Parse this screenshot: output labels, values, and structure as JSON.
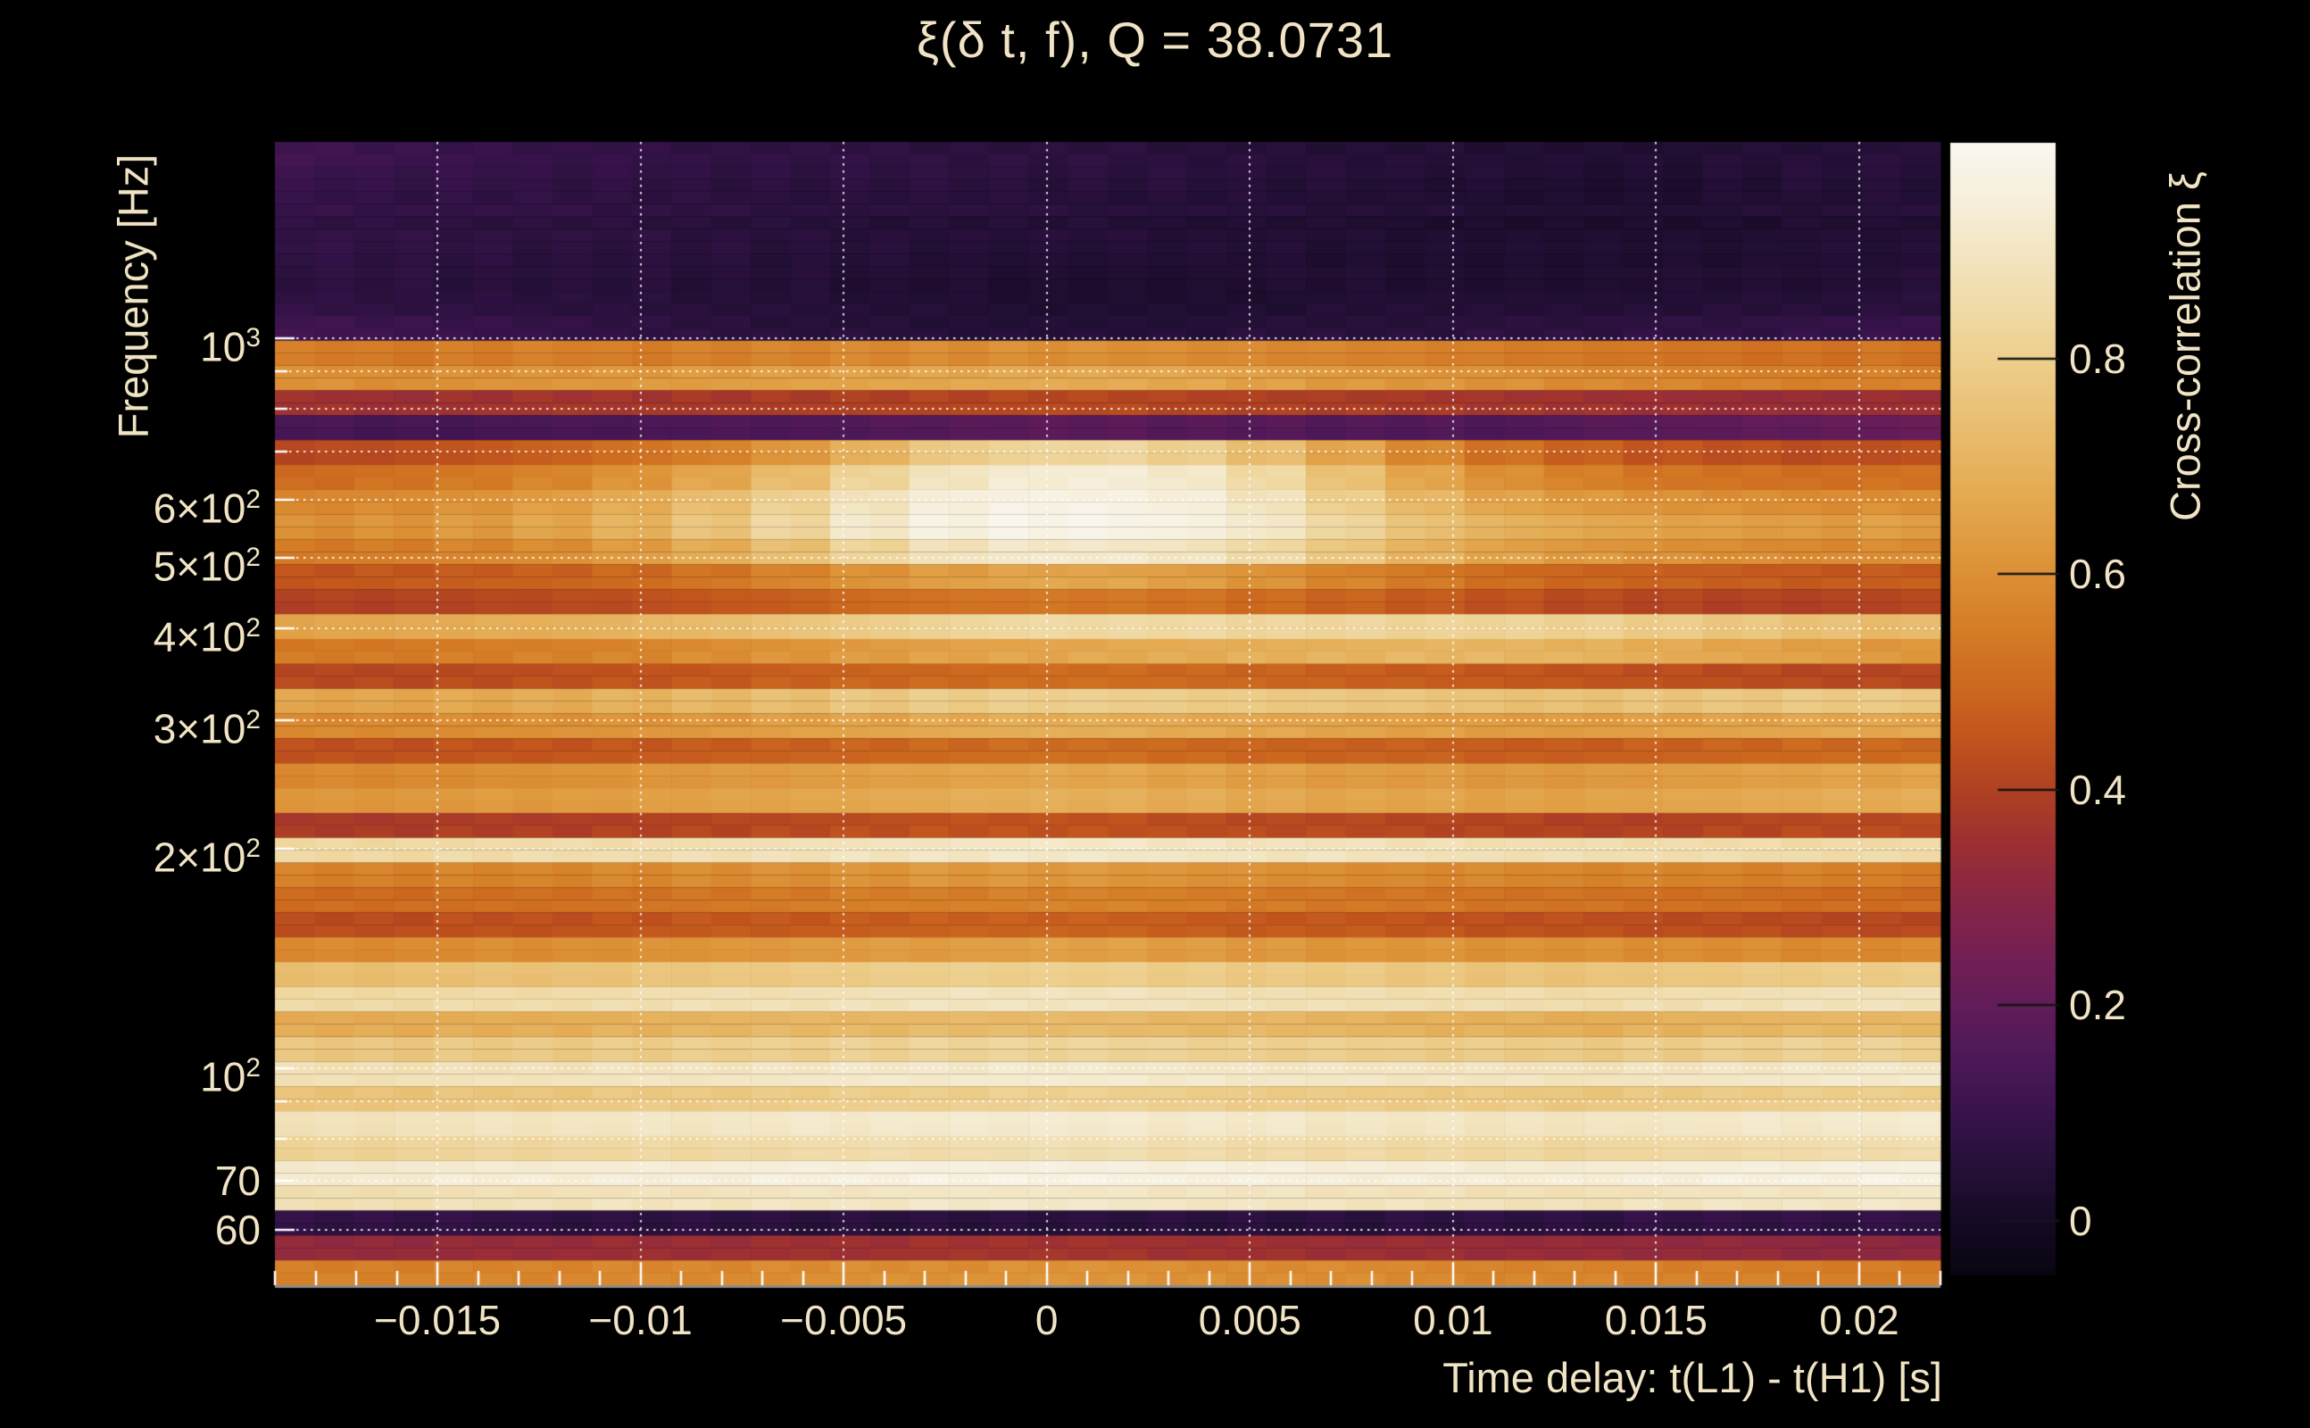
{
  "title": "ξ(δ t, f), Q = 38.0731",
  "colors": {
    "background": "#000000",
    "text": "#f0e4c4",
    "gridline": "rgba(255,255,255,0.88)",
    "tick": "#ffffff",
    "axis_line": "#8c8c8c",
    "colorbar_tick": "#141414"
  },
  "chart_data": {
    "type": "heatmap",
    "title": "ξ(δ t, f), Q = 38.0731",
    "xlabel": "Time delay: t(L1) - t(H1) [s]",
    "ylabel": "Frequency [Hz]",
    "colorbar_label": "Cross-correlation ξ",
    "x_range": [
      -0.019,
      0.022
    ],
    "y_range_hz": [
      50.4,
      1858
    ],
    "y_scale": "log",
    "grid_on": true,
    "colorbar_range": [
      -0.05,
      1.0
    ],
    "x_major_ticks": [
      {
        "v": -0.015,
        "label": "−0.015"
      },
      {
        "v": -0.01,
        "label": "−0.01"
      },
      {
        "v": -0.005,
        "label": "−0.005"
      },
      {
        "v": 0,
        "label": "0"
      },
      {
        "v": 0.005,
        "label": "0.005"
      },
      {
        "v": 0.01,
        "label": "0.01"
      },
      {
        "v": 0.015,
        "label": "0.015"
      },
      {
        "v": 0.02,
        "label": "0.02"
      }
    ],
    "x_minor_step": 0.001,
    "y_ticks": [
      {
        "f": 1000,
        "pre": "10",
        "sup": "3"
      },
      {
        "f": 600,
        "pre": "6×10",
        "sup": "2"
      },
      {
        "f": 500,
        "pre": "5×10",
        "sup": "2"
      },
      {
        "f": 400,
        "pre": "4×10",
        "sup": "2"
      },
      {
        "f": 300,
        "pre": "3×10",
        "sup": "2"
      },
      {
        "f": 200,
        "pre": "2×10",
        "sup": "2"
      },
      {
        "f": 100,
        "pre": "10",
        "sup": "2"
      },
      {
        "f": 70,
        "pre": "70",
        "sup": ""
      },
      {
        "f": 60,
        "pre": "60",
        "sup": ""
      }
    ],
    "y_gridline_freqs": [
      1000,
      900,
      800,
      700,
      600,
      500,
      400,
      300,
      200,
      100,
      90,
      80,
      70,
      60
    ],
    "colorbar_ticks": [
      {
        "v": 0.8,
        "label": "0.8"
      },
      {
        "v": 0.6,
        "label": "0.6"
      },
      {
        "v": 0.4,
        "label": "0.4"
      },
      {
        "v": 0.2,
        "label": "0.2"
      },
      {
        "v": 0,
        "label": "0"
      }
    ],
    "colormap": [
      [
        1.0,
        "#faf7f1"
      ],
      [
        0.95,
        "#f6efdc"
      ],
      [
        0.9,
        "#f3e6c4"
      ],
      [
        0.85,
        "#f0dba9"
      ],
      [
        0.8,
        "#edcf8e"
      ],
      [
        0.75,
        "#eac176"
      ],
      [
        0.7,
        "#e6b25d"
      ],
      [
        0.65,
        "#e2a248"
      ],
      [
        0.6,
        "#dc9035"
      ],
      [
        0.55,
        "#d57d27"
      ],
      [
        0.5,
        "#cd6a1f"
      ],
      [
        0.45,
        "#c2551d"
      ],
      [
        0.4,
        "#b04122"
      ],
      [
        0.35,
        "#9c2f33"
      ],
      [
        0.3,
        "#882644"
      ],
      [
        0.25,
        "#752052"
      ],
      [
        0.2,
        "#621c59"
      ],
      [
        0.15,
        "#4c1857"
      ],
      [
        0.1,
        "#38134c"
      ],
      [
        0.05,
        "#251038"
      ],
      [
        0.0,
        "#150a24"
      ],
      [
        -0.05,
        "#0a0512"
      ]
    ],
    "grid_value_scale": 0.01,
    "grid": [
      [
        12,
        11,
        10,
        9,
        9,
        8,
        8,
        8,
        7,
        7,
        7,
        6,
        6,
        5,
        5,
        4,
        4,
        4,
        5,
        5,
        6
      ],
      [
        10,
        9,
        9,
        8,
        8,
        7,
        7,
        7,
        7,
        6,
        6,
        6,
        5,
        5,
        4,
        4,
        3,
        3,
        4,
        5,
        5
      ],
      [
        9,
        8,
        8,
        8,
        7,
        7,
        6,
        6,
        6,
        6,
        5,
        5,
        5,
        4,
        4,
        3,
        3,
        3,
        4,
        4,
        5
      ],
      [
        8,
        8,
        7,
        7,
        7,
        6,
        6,
        5,
        5,
        5,
        5,
        4,
        4,
        4,
        3,
        3,
        3,
        3,
        3,
        4,
        4
      ],
      [
        8,
        7,
        7,
        6,
        6,
        6,
        5,
        5,
        4,
        4,
        4,
        4,
        4,
        3,
        3,
        3,
        3,
        3,
        3,
        4,
        4
      ],
      [
        7,
        7,
        6,
        6,
        6,
        5,
        5,
        4,
        4,
        3,
        3,
        3,
        4,
        4,
        3,
        3,
        3,
        4,
        4,
        4,
        5
      ],
      [
        8,
        7,
        7,
        6,
        6,
        5,
        5,
        4,
        4,
        3,
        3,
        3,
        3,
        4,
        4,
        4,
        4,
        4,
        5,
        5,
        6
      ],
      [
        12,
        11,
        10,
        9,
        8,
        7,
        6,
        6,
        5,
        5,
        5,
        5,
        6,
        6,
        6,
        7,
        7,
        8,
        8,
        9,
        10
      ],
      [
        55,
        54,
        55,
        56,
        55,
        56,
        57,
        58,
        59,
        60,
        60,
        59,
        58,
        57,
        56,
        55,
        54,
        53,
        52,
        52,
        53
      ],
      [
        60,
        59,
        60,
        61,
        62,
        63,
        64,
        65,
        66,
        67,
        67,
        66,
        64,
        62,
        61,
        60,
        58,
        57,
        56,
        55,
        56
      ],
      [
        36,
        35,
        36,
        37,
        37,
        38,
        39,
        40,
        41,
        42,
        42,
        41,
        40,
        39,
        38,
        37,
        36,
        35,
        34,
        34,
        35
      ],
      [
        14,
        13,
        13,
        14,
        14,
        15,
        15,
        16,
        17,
        18,
        18,
        17,
        17,
        16,
        16,
        15,
        17,
        18,
        19,
        20,
        21
      ],
      [
        42,
        43,
        45,
        48,
        52,
        56,
        62,
        70,
        78,
        82,
        83,
        80,
        74,
        66,
        58,
        52,
        48,
        45,
        44,
        43,
        44
      ],
      [
        50,
        52,
        54,
        57,
        61,
        66,
        73,
        82,
        89,
        93,
        94,
        91,
        84,
        75,
        66,
        60,
        56,
        53,
        52,
        51,
        52
      ],
      [
        58,
        59,
        61,
        64,
        68,
        74,
        81,
        89,
        95,
        97,
        97,
        95,
        89,
        80,
        72,
        66,
        63,
        61,
        60,
        59,
        60
      ],
      [
        60,
        61,
        63,
        66,
        70,
        76,
        83,
        91,
        96,
        98,
        98,
        96,
        91,
        83,
        75,
        70,
        67,
        65,
        64,
        63,
        64
      ],
      [
        54,
        55,
        57,
        59,
        63,
        68,
        74,
        82,
        88,
        91,
        91,
        89,
        84,
        77,
        70,
        65,
        62,
        60,
        59,
        58,
        59
      ],
      [
        45,
        46,
        47,
        48,
        50,
        53,
        57,
        61,
        64,
        66,
        66,
        64,
        61,
        57,
        54,
        51,
        49,
        48,
        47,
        46,
        47
      ],
      [
        40,
        40,
        41,
        42,
        43,
        45,
        47,
        50,
        52,
        53,
        53,
        52,
        50,
        48,
        46,
        44,
        42,
        41,
        40,
        40,
        41
      ],
      [
        66,
        67,
        68,
        69,
        71,
        73,
        76,
        79,
        82,
        84,
        84,
        84,
        83,
        83,
        82,
        82,
        81,
        79,
        77,
        75,
        73
      ],
      [
        54,
        54,
        55,
        56,
        57,
        59,
        61,
        63,
        65,
        66,
        67,
        68,
        69,
        70,
        71,
        71,
        70,
        68,
        66,
        64,
        62
      ],
      [
        42,
        42,
        43,
        44,
        45,
        46,
        48,
        49,
        50,
        51,
        51,
        50,
        49,
        48,
        47,
        46,
        45,
        44,
        43,
        42,
        42
      ],
      [
        66,
        66,
        67,
        68,
        70,
        72,
        74,
        77,
        79,
        80,
        80,
        79,
        78,
        77,
        76,
        75,
        75,
        76,
        77,
        78,
        78
      ],
      [
        58,
        58,
        59,
        60,
        61,
        62,
        64,
        65,
        67,
        68,
        68,
        67,
        66,
        65,
        64,
        63,
        63,
        64,
        65,
        66,
        66
      ],
      [
        44,
        44,
        45,
        45,
        46,
        47,
        48,
        49,
        50,
        51,
        51,
        50,
        49,
        48,
        48,
        47,
        47,
        48,
        49,
        50,
        50
      ],
      [
        58,
        58,
        59,
        60,
        61,
        62,
        63,
        64,
        65,
        66,
        66,
        65,
        64,
        63,
        63,
        62,
        62,
        63,
        64,
        65,
        65
      ],
      [
        62,
        62,
        63,
        63,
        64,
        65,
        66,
        67,
        68,
        69,
        69,
        68,
        67,
        66,
        66,
        65,
        65,
        66,
        67,
        68,
        68
      ],
      [
        38,
        38,
        39,
        39,
        40,
        41,
        42,
        43,
        44,
        44,
        44,
        43,
        42,
        42,
        41,
        41,
        40,
        40,
        41,
        42,
        42
      ],
      [
        84,
        84,
        85,
        86,
        86,
        87,
        88,
        89,
        90,
        91,
        91,
        90,
        89,
        89,
        88,
        87,
        87,
        86,
        86,
        85,
        85
      ],
      [
        56,
        56,
        57,
        57,
        58,
        59,
        60,
        61,
        62,
        62,
        62,
        61,
        60,
        59,
        58,
        58,
        57,
        57,
        56,
        56,
        55
      ],
      [
        50,
        50,
        51,
        51,
        52,
        53,
        54,
        55,
        55,
        56,
        56,
        55,
        54,
        53,
        53,
        52,
        52,
        51,
        51,
        50,
        50
      ],
      [
        43,
        43,
        44,
        44,
        45,
        46,
        46,
        47,
        48,
        48,
        48,
        47,
        46,
        46,
        45,
        44,
        44,
        43,
        43,
        42,
        42
      ],
      [
        58,
        58,
        59,
        59,
        60,
        61,
        62,
        63,
        63,
        64,
        64,
        63,
        62,
        61,
        61,
        60,
        60,
        59,
        59,
        58,
        58
      ],
      [
        74,
        74,
        75,
        75,
        76,
        77,
        78,
        79,
        80,
        80,
        80,
        79,
        78,
        78,
        77,
        76,
        76,
        77,
        78,
        79,
        79
      ],
      [
        84,
        84,
        85,
        85,
        86,
        87,
        87,
        88,
        89,
        89,
        89,
        88,
        87,
        87,
        86,
        86,
        85,
        86,
        87,
        88,
        88
      ],
      [
        68,
        68,
        69,
        69,
        70,
        71,
        72,
        72,
        73,
        73,
        73,
        72,
        72,
        71,
        70,
        70,
        69,
        70,
        71,
        72,
        72
      ],
      [
        77,
        77,
        78,
        78,
        79,
        80,
        80,
        81,
        82,
        82,
        82,
        81,
        80,
        80,
        79,
        79,
        78,
        79,
        80,
        81,
        81
      ],
      [
        87,
        87,
        88,
        88,
        89,
        89,
        90,
        91,
        91,
        92,
        92,
        91,
        90,
        90,
        89,
        89,
        88,
        89,
        90,
        91,
        91
      ],
      [
        76,
        76,
        77,
        77,
        78,
        78,
        79,
        80,
        80,
        81,
        81,
        80,
        79,
        79,
        78,
        78,
        77,
        78,
        79,
        80,
        80
      ],
      [
        88,
        88,
        89,
        89,
        90,
        90,
        91,
        91,
        92,
        92,
        92,
        91,
        91,
        90,
        90,
        89,
        89,
        90,
        91,
        91,
        92
      ],
      [
        82,
        82,
        83,
        83,
        84,
        84,
        85,
        86,
        86,
        87,
        87,
        86,
        85,
        85,
        84,
        84,
        83,
        84,
        85,
        86,
        86
      ],
      [
        92,
        92,
        93,
        93,
        94,
        94,
        95,
        95,
        96,
        96,
        96,
        95,
        95,
        94,
        94,
        93,
        93,
        94,
        95,
        95,
        96
      ],
      [
        87,
        87,
        88,
        88,
        89,
        89,
        90,
        90,
        91,
        91,
        91,
        90,
        90,
        89,
        89,
        88,
        88,
        89,
        90,
        90,
        91
      ],
      [
        8,
        8,
        8,
        7,
        7,
        7,
        6,
        6,
        6,
        6,
        6,
        6,
        6,
        6,
        7,
        7,
        7,
        8,
        8,
        8,
        8
      ],
      [
        32,
        32,
        33,
        33,
        34,
        34,
        35,
        35,
        36,
        36,
        36,
        35,
        35,
        34,
        34,
        33,
        33,
        32,
        32,
        31,
        31
      ],
      [
        56,
        56,
        57,
        57,
        58,
        58,
        59,
        60,
        60,
        61,
        61,
        60,
        59,
        59,
        58,
        57,
        57,
        56,
        56,
        55,
        55
      ]
    ]
  }
}
